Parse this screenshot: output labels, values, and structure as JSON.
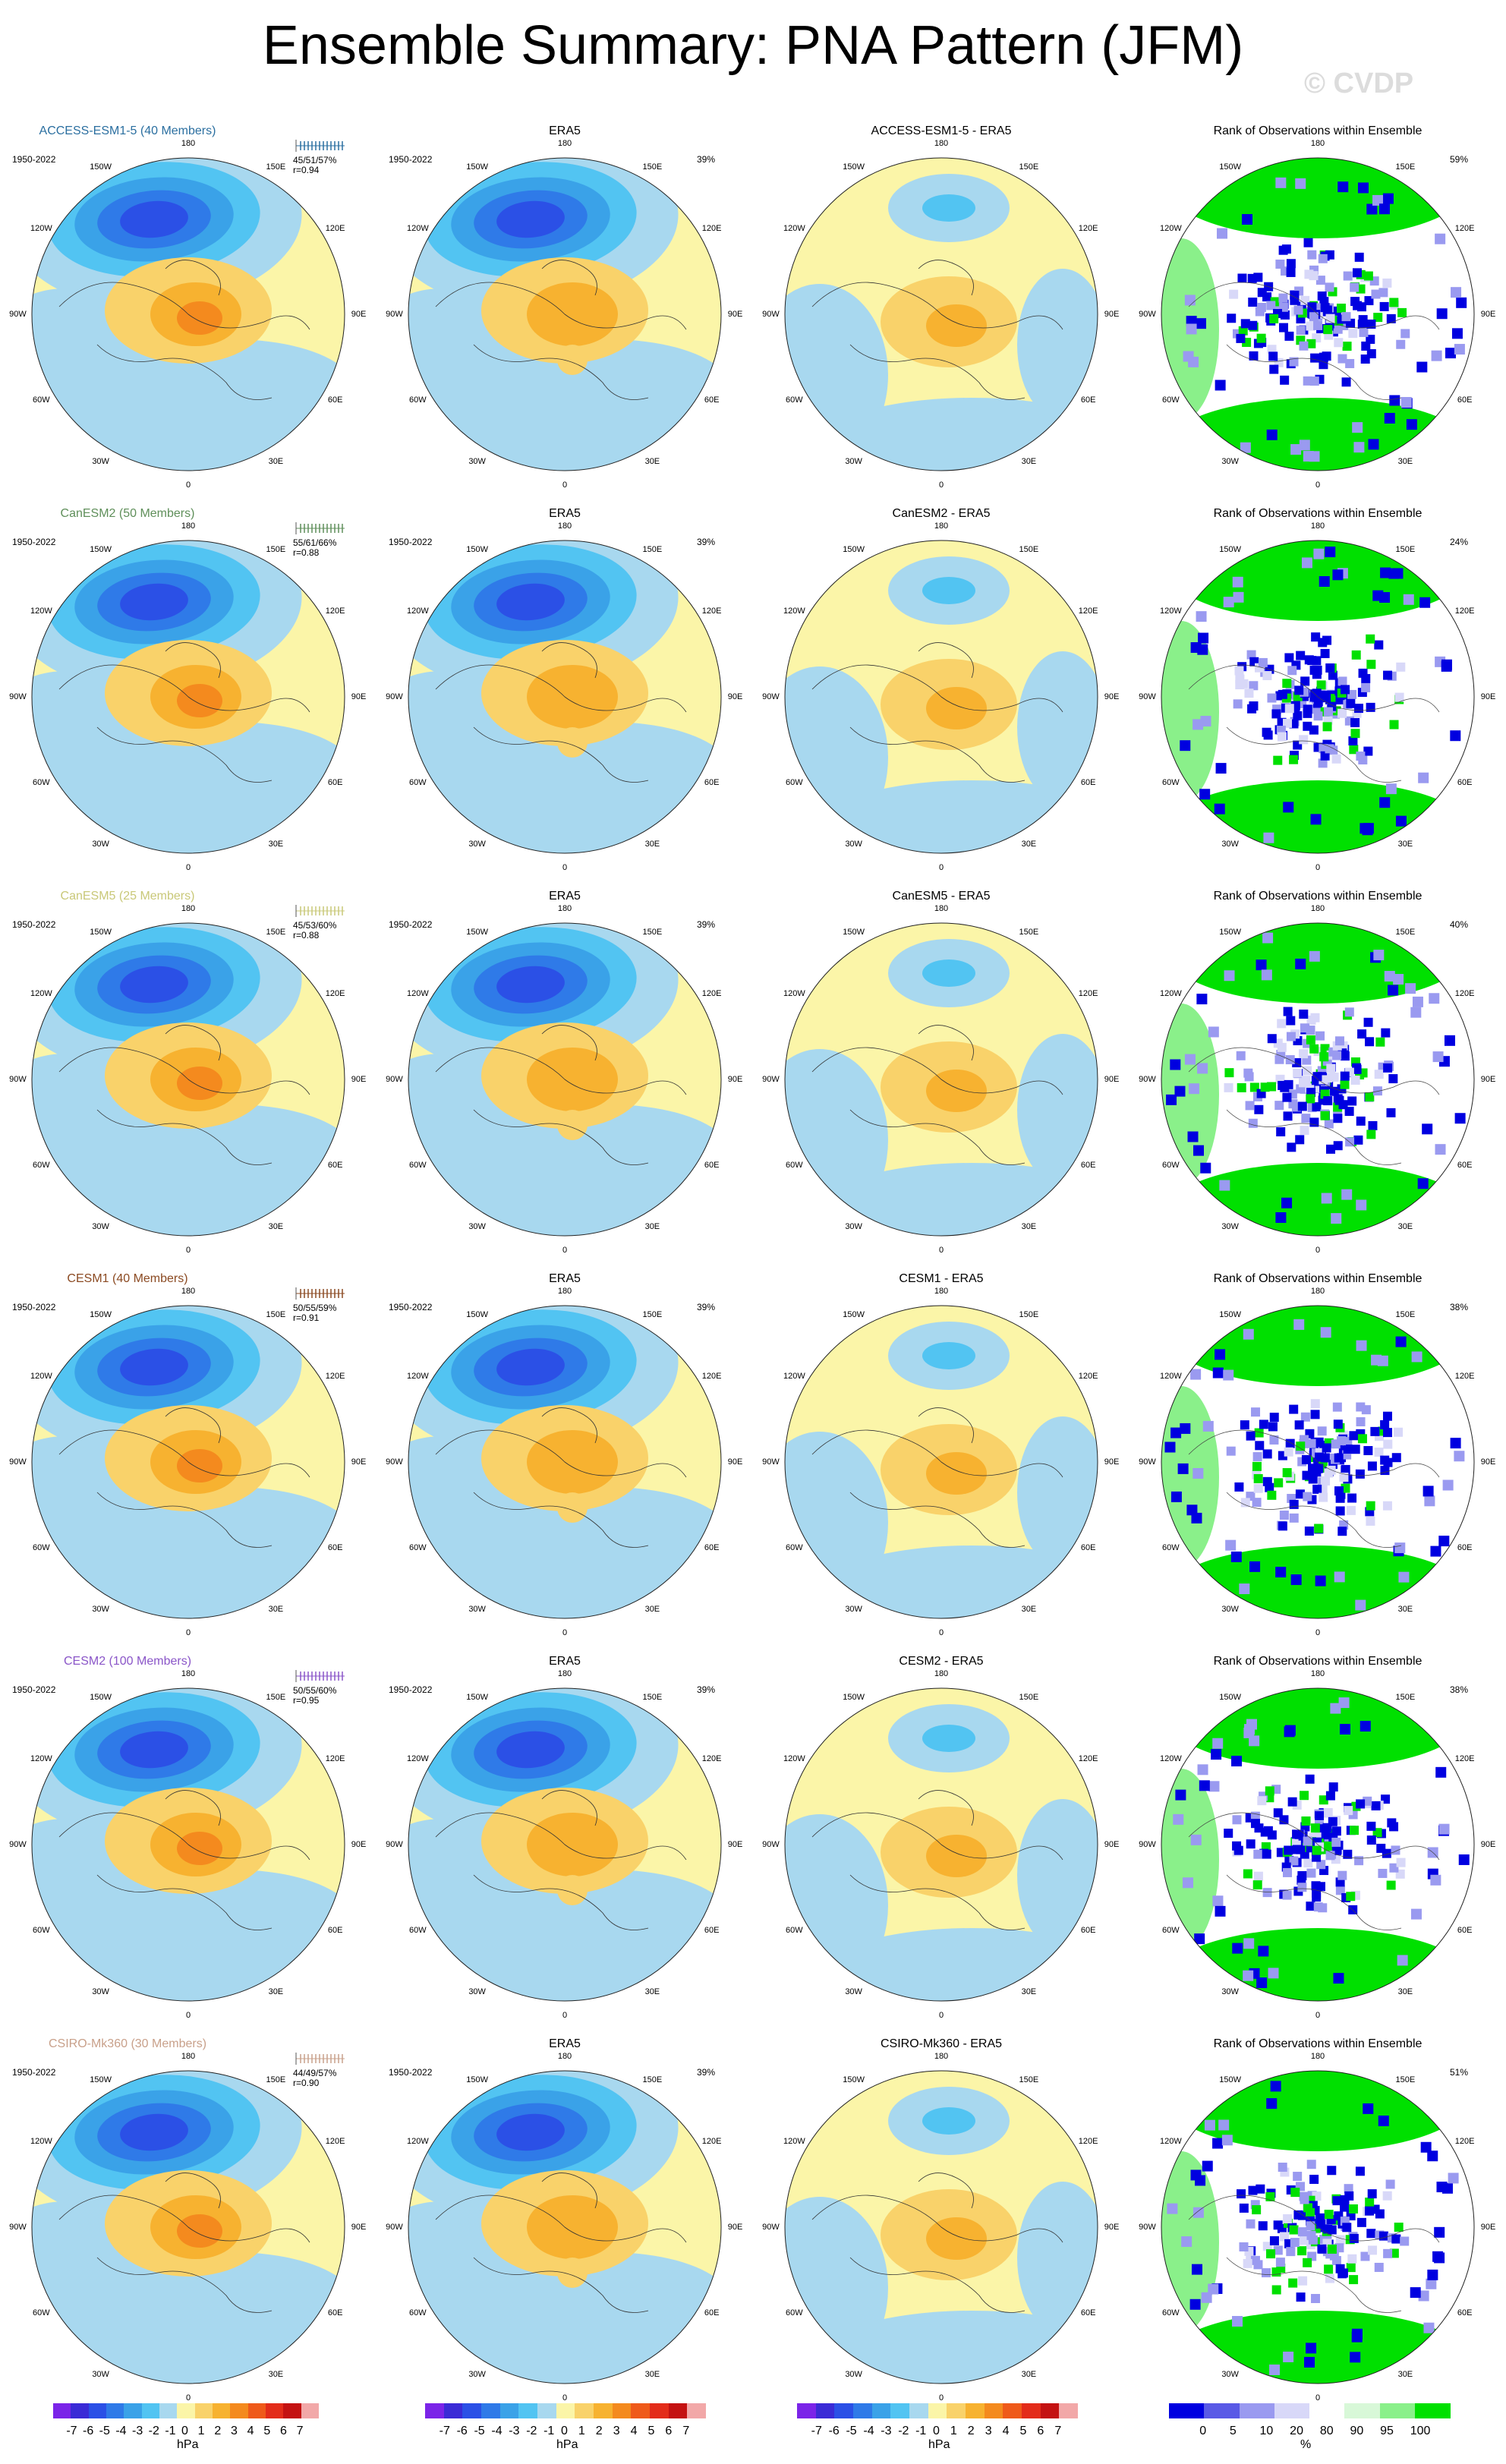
{
  "title": "Ensemble Summary: PNA Pattern (JFM)",
  "watermark": "© CVDP",
  "era5_title": "ERA5",
  "rank_title": "Rank of Observations within Ensemble",
  "obs_years": "1950-2022",
  "era5_pct": "39%",
  "lon_labels": [
    "180",
    "150W",
    "150E",
    "120W",
    "120E",
    "90W",
    "90E",
    "60W",
    "60E",
    "30W",
    "30E",
    "0"
  ],
  "rows": [
    {
      "model_title": "ACCESS-ESM1-5 (40 Members)",
      "title_color": "#2b6fa0",
      "years": "1950-2022",
      "stats": "45/51/57%",
      "r": "r=0.94",
      "diff_title": "ACCESS-ESM1-5 - ERA5",
      "rank_pct": "59%"
    },
    {
      "model_title": "CanESM2 (50 Members)",
      "title_color": "#5f8f5a",
      "years": "1950-2022",
      "stats": "55/61/66%",
      "r": "r=0.88",
      "diff_title": "CanESM2 - ERA5",
      "rank_pct": "24%"
    },
    {
      "model_title": "CanESM5 (25 Members)",
      "title_color": "#c9c878",
      "years": "1950-2022",
      "stats": "45/53/60%",
      "r": "r=0.88",
      "diff_title": "CanESM5 - ERA5",
      "rank_pct": "40%"
    },
    {
      "model_title": "CESM1 (40 Members)",
      "title_color": "#8b4a22",
      "years": "1950-2022",
      "stats": "50/55/59%",
      "r": "r=0.91",
      "diff_title": "CESM1 - ERA5",
      "rank_pct": "38%"
    },
    {
      "model_title": "CESM2 (100 Members)",
      "title_color": "#8a55c8",
      "years": "1950-2022",
      "stats": "50/55/60%",
      "r": "r=0.95",
      "diff_title": "CESM2 - ERA5",
      "rank_pct": "38%"
    },
    {
      "model_title": "CSIRO-Mk360 (30 Members)",
      "title_color": "#c8a08a",
      "years": "1950-2022",
      "stats": "44/49/57%",
      "r": "r=0.90",
      "diff_title": "CSIRO-Mk360 - ERA5",
      "rank_pct": "51%"
    }
  ],
  "colorbar_hpa": {
    "ticks": [
      "-7",
      "-6",
      "-5",
      "-4",
      "-3",
      "-2",
      "-1",
      "0",
      "1",
      "2",
      "3",
      "4",
      "5",
      "6",
      "7"
    ],
    "units": "hPa",
    "colors": [
      "#7b24e8",
      "#3a2bd6",
      "#2b50e6",
      "#2f7ae8",
      "#3aa2e8",
      "#52c4f2",
      "#a8d8ef",
      "#fbf5a8",
      "#f9d26a",
      "#f7b230",
      "#f48a1e",
      "#ef5a1a",
      "#e32c1a",
      "#c41212",
      "#f2a8a8"
    ]
  },
  "colorbar_rank": {
    "ticks": [
      "0",
      "5",
      "10",
      "20",
      "80",
      "90",
      "95",
      "100"
    ],
    "units": "%",
    "colors": [
      "#0000e0",
      "#5a5ae6",
      "#9a9af0",
      "#d8d8f8",
      "#ffffff",
      "#d8f8d8",
      "#8af08a",
      "#00e000"
    ]
  }
}
